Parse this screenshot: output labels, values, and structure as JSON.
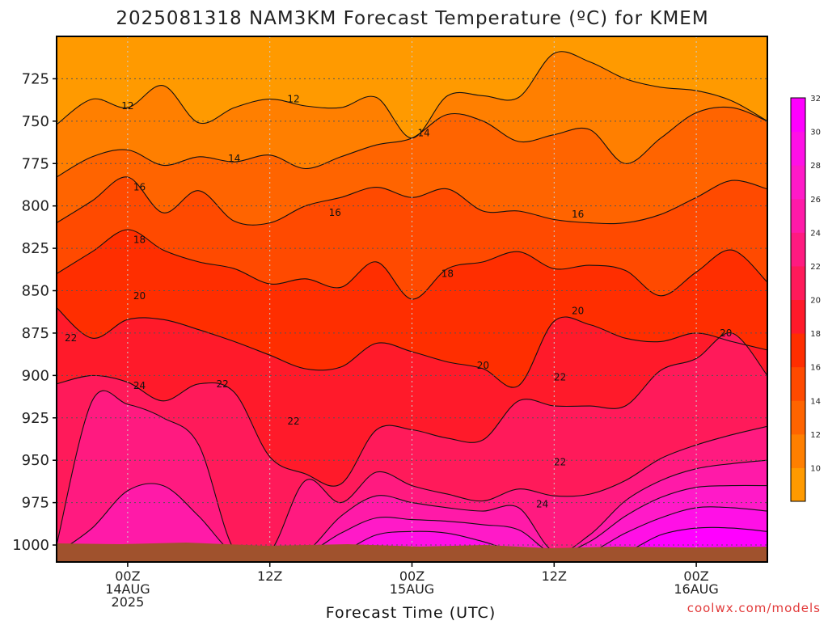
{
  "page": {
    "title": "2025081318 NAM3KM Forecast Temperature (ºC) for KMEM",
    "xlabel": "Forecast Time (UTC)",
    "credit": "coolwx.com/models"
  },
  "colors": {
    "ground": "#a0522d",
    "grid": "#555555",
    "contour": "#111111",
    "levels": [
      {
        "min": 10,
        "max": 12,
        "color": "#ff9a00"
      },
      {
        "min": 12,
        "max": 14,
        "color": "#ff7f00"
      },
      {
        "min": 14,
        "max": 16,
        "color": "#ff6400"
      },
      {
        "min": 16,
        "max": 18,
        "color": "#ff4a00"
      },
      {
        "min": 18,
        "max": 20,
        "color": "#ff2e00"
      },
      {
        "min": 20,
        "max": 22,
        "color": "#ff1a2a"
      },
      {
        "min": 22,
        "max": 24,
        "color": "#ff1a5a"
      },
      {
        "min": 24,
        "max": 26,
        "color": "#ff1a80"
      },
      {
        "min": 26,
        "max": 28,
        "color": "#ff1aa8"
      },
      {
        "min": 28,
        "max": 30,
        "color": "#ff1ac8"
      },
      {
        "min": 30,
        "max": 32,
        "color": "#ff10e6"
      },
      {
        "min": 32,
        "max": 34,
        "color": "#ff00ff"
      }
    ]
  },
  "chart_data": {
    "type": "heatmap",
    "title": "2025081318 NAM3KM Forecast Temperature (ºC) for KMEM",
    "xlabel": "Forecast Time (UTC)",
    "ylabel": "",
    "x_unit": "forecast hour",
    "xlim": [
      -6,
      54
    ],
    "ylim": [
      1010,
      700
    ],
    "y_ticks": [
      725,
      750,
      775,
      800,
      825,
      850,
      875,
      900,
      925,
      950,
      975,
      1000
    ],
    "x_ticks": [
      {
        "hour": 0,
        "lines": [
          "00Z",
          "14AUG",
          "2025"
        ]
      },
      {
        "hour": 12,
        "lines": [
          "12Z"
        ]
      },
      {
        "hour": 24,
        "lines": [
          "00Z",
          "15AUG"
        ]
      },
      {
        "hour": 36,
        "lines": [
          "12Z"
        ]
      },
      {
        "hour": 48,
        "lines": [
          "00Z",
          "16AUG"
        ]
      }
    ],
    "colorbar_ticks": [
      10,
      12,
      14,
      16,
      18,
      20,
      22,
      24,
      26,
      28,
      30,
      32
    ],
    "contour_levels": [
      12,
      14,
      16,
      18,
      20,
      22,
      24,
      26,
      28,
      30,
      32
    ],
    "sample_hours": [
      -6,
      -3,
      0,
      3,
      6,
      9,
      12,
      15,
      18,
      21,
      24,
      27,
      30,
      33,
      36,
      39,
      42,
      45,
      48,
      51,
      54
    ],
    "isotherm_pressure_hPa": {
      "12": [
        752,
        737,
        742,
        729,
        751,
        742,
        737,
        741,
        742,
        736,
        760,
        735,
        735,
        736,
        710,
        715,
        725,
        730,
        732,
        738,
        750
      ],
      "14": [
        783,
        771,
        767,
        776,
        771,
        774,
        770,
        778,
        771,
        764,
        760,
        746,
        750,
        762,
        758,
        755,
        775,
        760,
        745,
        742,
        750
      ],
      "16": [
        810,
        797,
        783,
        804,
        791,
        809,
        810,
        800,
        795,
        789,
        795,
        790,
        803,
        803,
        808,
        810,
        810,
        805,
        795,
        785,
        790
      ],
      "18": [
        840,
        827,
        814,
        826,
        833,
        837,
        846,
        843,
        848,
        833,
        855,
        837,
        833,
        827,
        837,
        835,
        838,
        853,
        839,
        826,
        845
      ],
      "20": [
        860,
        878,
        867,
        867,
        873,
        880,
        888,
        896,
        895,
        881,
        886,
        892,
        896,
        906,
        868,
        870,
        878,
        880,
        875,
        880,
        885
      ],
      "22": [
        905,
        900,
        904,
        915,
        905,
        910,
        948,
        958,
        964,
        932,
        932,
        937,
        938,
        915,
        918,
        918,
        918,
        897,
        890,
        875,
        900
      ],
      "24": [
        1000,
        915,
        917,
        925,
        941,
        1003,
        1004,
        962,
        975,
        957,
        965,
        970,
        974,
        967,
        971,
        970,
        962,
        949,
        941,
        935,
        930
      ],
      "26": [
        1005,
        990,
        968,
        965,
        983,
        1005,
        1005,
        1004,
        983,
        971,
        975,
        978,
        980,
        978,
        1004,
        994,
        974,
        962,
        955,
        952,
        950
      ],
      "28": [
        1005,
        1004,
        1004,
        1004,
        1005,
        1005,
        1005,
        1005,
        993,
        984,
        985,
        986,
        988,
        991,
        1005,
        998,
        983,
        972,
        966,
        965,
        965
      ],
      "30": [
        1005,
        1005,
        1005,
        1005,
        1005,
        1005,
        1005,
        1005,
        1004,
        994,
        992,
        993,
        998,
        1004,
        1005,
        1004,
        993,
        984,
        978,
        978,
        980
      ],
      "32": [
        1005,
        1005,
        1005,
        1005,
        1005,
        1005,
        1005,
        1005,
        1005,
        1004,
        1003,
        1004,
        1005,
        1005,
        1005,
        1005,
        1004,
        994,
        990,
        990,
        992
      ]
    },
    "contour_labels": [
      {
        "text": "12",
        "hour": 0,
        "p": 741
      },
      {
        "text": "12",
        "hour": 14,
        "p": 737
      },
      {
        "text": "14",
        "hour": 9,
        "p": 772
      },
      {
        "text": "14",
        "hour": 25,
        "p": 757
      },
      {
        "text": "16",
        "hour": 1,
        "p": 789
      },
      {
        "text": "16",
        "hour": 17.5,
        "p": 804
      },
      {
        "text": "16",
        "hour": 38,
        "p": 805
      },
      {
        "text": "18",
        "hour": 1,
        "p": 820
      },
      {
        "text": "18",
        "hour": 27,
        "p": 840
      },
      {
        "text": "20",
        "hour": 1,
        "p": 853
      },
      {
        "text": "20",
        "hour": 38,
        "p": 862
      },
      {
        "text": "20",
        "hour": 30,
        "p": 894
      },
      {
        "text": "20",
        "hour": 50.5,
        "p": 875
      },
      {
        "text": "22",
        "hour": -4.8,
        "p": 878
      },
      {
        "text": "22",
        "hour": 8,
        "p": 905
      },
      {
        "text": "22",
        "hour": 14,
        "p": 927
      },
      {
        "text": "22",
        "hour": 36.5,
        "p": 901
      },
      {
        "text": "22",
        "hour": 36.5,
        "p": 951
      },
      {
        "text": "24",
        "hour": 1,
        "p": 906
      },
      {
        "text": "24",
        "hour": 35,
        "p": 976
      }
    ],
    "grid": true,
    "legend": "colorbar-right"
  }
}
